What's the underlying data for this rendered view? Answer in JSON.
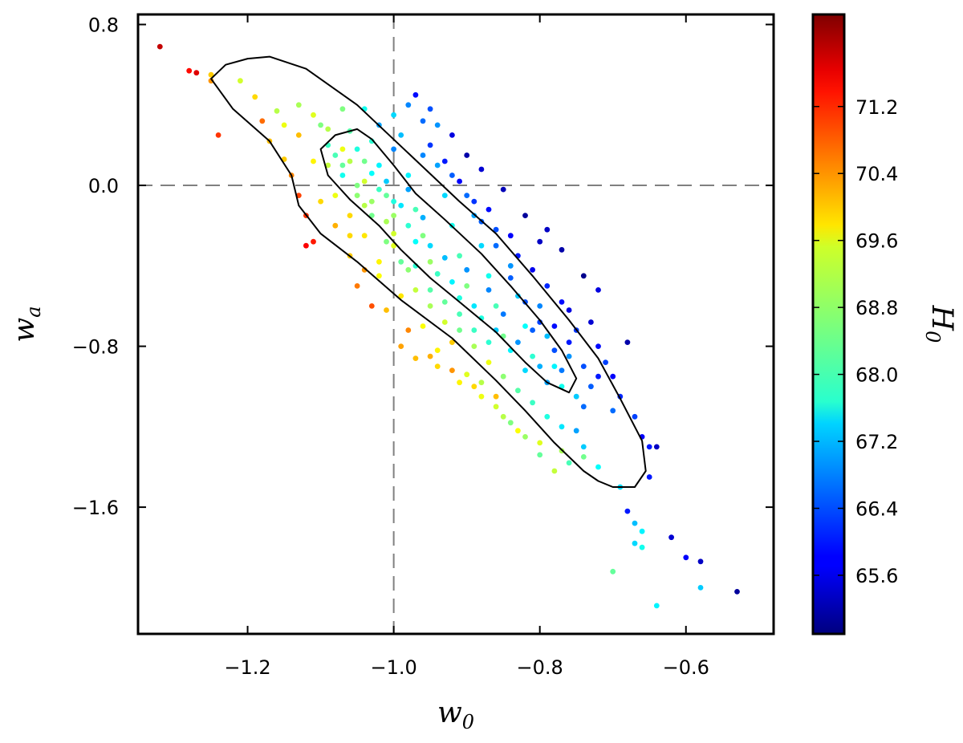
{
  "chart_data": {
    "type": "scatter",
    "xlabel": "w",
    "xlabel_sub": "0",
    "ylabel": "w",
    "ylabel_sub": "a",
    "xlim": [
      -1.35,
      -0.48
    ],
    "ylim": [
      -2.23,
      0.85
    ],
    "x_ticks": [
      -1.2,
      -1.0,
      -0.8,
      -0.6
    ],
    "x_tick_labels": [
      "−1.2",
      "−1.0",
      "−0.8",
      "−0.6"
    ],
    "y_ticks": [
      0.8,
      0.0,
      -0.8,
      -1.6
    ],
    "y_tick_labels": [
      "0.8",
      "0.0",
      "−0.8",
      "−1.6"
    ],
    "reference_lines": {
      "x": -1.0,
      "y": 0.0,
      "style": "dashed",
      "color": "#808080"
    },
    "grid": false,
    "colorbar": {
      "label": "H",
      "label_sub": "0",
      "colormap": "jet",
      "range": [
        64.9,
        72.3
      ],
      "ticks": [
        71.2,
        70.4,
        69.6,
        68.8,
        68.0,
        67.2,
        66.4,
        65.6
      ],
      "tick_labels": [
        "71.2",
        "70.4",
        "69.6",
        "68.8",
        "68.0",
        "67.2",
        "66.4",
        "65.6"
      ]
    },
    "contours": [
      {
        "level": "inner",
        "points": [
          [
            -1.05,
            0.28
          ],
          [
            -1.08,
            0.25
          ],
          [
            -1.1,
            0.18
          ],
          [
            -1.09,
            0.05
          ],
          [
            -1.06,
            -0.07
          ],
          [
            -1.02,
            -0.2
          ],
          [
            -0.99,
            -0.32
          ],
          [
            -0.95,
            -0.46
          ],
          [
            -0.91,
            -0.58
          ],
          [
            -0.86,
            -0.73
          ],
          [
            -0.82,
            -0.88
          ],
          [
            -0.79,
            -0.98
          ],
          [
            -0.76,
            -1.03
          ],
          [
            -0.75,
            -0.96
          ],
          [
            -0.77,
            -0.82
          ],
          [
            -0.8,
            -0.67
          ],
          [
            -0.84,
            -0.5
          ],
          [
            -0.88,
            -0.34
          ],
          [
            -0.93,
            -0.17
          ],
          [
            -0.97,
            -0.04
          ],
          [
            -1.0,
            0.1
          ],
          [
            -1.03,
            0.23
          ],
          [
            -1.05,
            0.28
          ]
        ]
      },
      {
        "level": "outer",
        "points": [
          [
            -1.2,
            0.63
          ],
          [
            -1.23,
            0.6
          ],
          [
            -1.25,
            0.53
          ],
          [
            -1.22,
            0.38
          ],
          [
            -1.17,
            0.22
          ],
          [
            -1.14,
            0.05
          ],
          [
            -1.13,
            -0.1
          ],
          [
            -1.1,
            -0.24
          ],
          [
            -1.05,
            -0.38
          ],
          [
            -0.99,
            -0.57
          ],
          [
            -0.92,
            -0.76
          ],
          [
            -0.86,
            -0.97
          ],
          [
            -0.82,
            -1.12
          ],
          [
            -0.78,
            -1.28
          ],
          [
            -0.74,
            -1.42
          ],
          [
            -0.72,
            -1.47
          ],
          [
            -0.7,
            -1.5
          ],
          [
            -0.67,
            -1.5
          ],
          [
            -0.655,
            -1.42
          ],
          [
            -0.66,
            -1.27
          ],
          [
            -0.69,
            -1.06
          ],
          [
            -0.72,
            -0.86
          ],
          [
            -0.76,
            -0.67
          ],
          [
            -0.81,
            -0.45
          ],
          [
            -0.86,
            -0.24
          ],
          [
            -0.91,
            -0.08
          ],
          [
            -0.98,
            0.16
          ],
          [
            -1.05,
            0.4
          ],
          [
            -1.12,
            0.58
          ],
          [
            -1.17,
            0.64
          ],
          [
            -1.2,
            0.63
          ]
        ]
      }
    ],
    "points": [
      [
        -1.32,
        0.69,
        71.8
      ],
      [
        -1.28,
        0.57,
        71.3
      ],
      [
        -1.27,
        0.56,
        71.6
      ],
      [
        -1.25,
        0.52,
        70.3
      ],
      [
        -1.25,
        0.55,
        69.9
      ],
      [
        -1.24,
        0.25,
        71.0
      ],
      [
        -1.21,
        0.52,
        69.2
      ],
      [
        -1.19,
        0.44,
        69.8
      ],
      [
        -1.18,
        0.32,
        70.6
      ],
      [
        -1.17,
        0.22,
        70.0
      ],
      [
        -1.16,
        0.37,
        69.0
      ],
      [
        -1.15,
        0.3,
        69.4
      ],
      [
        -1.15,
        0.13,
        69.9
      ],
      [
        -1.14,
        0.05,
        70.4
      ],
      [
        -1.13,
        -0.05,
        70.9
      ],
      [
        -1.12,
        -0.15,
        71.0
      ],
      [
        -1.11,
        -0.28,
        71.2
      ],
      [
        -1.12,
        -0.3,
        71.4
      ],
      [
        -1.06,
        -0.25,
        69.8
      ],
      [
        -1.05,
        -0.5,
        70.5
      ],
      [
        -1.03,
        -0.6,
        70.8
      ],
      [
        -1.02,
        -0.38,
        69.6
      ],
      [
        -1.0,
        -0.24,
        69.2
      ],
      [
        -0.99,
        -0.8,
        70.2
      ],
      [
        -0.97,
        -0.86,
        70.0
      ],
      [
        -0.94,
        -0.82,
        69.6
      ],
      [
        -0.92,
        -0.78,
        69.9
      ],
      [
        -0.9,
        -0.94,
        69.3
      ],
      [
        -0.88,
        -0.98,
        69.0
      ],
      [
        -0.86,
        -1.1,
        69.2
      ],
      [
        -0.84,
        -1.18,
        68.6
      ],
      [
        -0.82,
        -1.25,
        68.8
      ],
      [
        -0.8,
        -1.34,
        68.4
      ],
      [
        -0.78,
        -1.42,
        69.1
      ],
      [
        -0.76,
        -1.38,
        68.2
      ],
      [
        -1.1,
        0.3,
        68.6
      ],
      [
        -1.08,
        0.15,
        68.2
      ],
      [
        -1.07,
        0.05,
        67.8
      ],
      [
        -1.05,
        0.0,
        68.6
      ],
      [
        -1.04,
        -0.1,
        69.0
      ],
      [
        -1.03,
        0.22,
        68.0
      ],
      [
        -1.02,
        0.1,
        67.6
      ],
      [
        -1.01,
        -0.05,
        68.4
      ],
      [
        -1.0,
        -0.15,
        68.8
      ],
      [
        -0.99,
        0.25,
        67.2
      ],
      [
        -0.98,
        0.05,
        67.6
      ],
      [
        -0.97,
        -0.12,
        68.2
      ],
      [
        -0.96,
        -0.25,
        68.6
      ],
      [
        -0.95,
        -0.38,
        68.8
      ],
      [
        -0.94,
        0.1,
        67.0
      ],
      [
        -0.93,
        -0.05,
        67.4
      ],
      [
        -0.92,
        -0.2,
        67.8
      ],
      [
        -0.91,
        -0.35,
        68.2
      ],
      [
        -0.9,
        -0.5,
        68.6
      ],
      [
        -0.89,
        -0.15,
        67.0
      ],
      [
        -0.88,
        -0.3,
        67.4
      ],
      [
        -0.87,
        -0.45,
        67.8
      ],
      [
        -0.86,
        -0.6,
        68.2
      ],
      [
        -0.85,
        -0.75,
        68.5
      ],
      [
        -0.84,
        -0.4,
        66.9
      ],
      [
        -0.83,
        -0.55,
        67.3
      ],
      [
        -0.82,
        -0.7,
        67.7
      ],
      [
        -0.81,
        -0.85,
        68.0
      ],
      [
        -0.8,
        -0.6,
        66.8
      ],
      [
        -0.79,
        -0.75,
        67.2
      ],
      [
        -0.78,
        -0.9,
        67.6
      ],
      [
        -0.77,
        -1.0,
        67.8
      ],
      [
        -0.76,
        -0.85,
        66.9
      ],
      [
        -0.75,
        -1.05,
        67.3
      ],
      [
        -0.74,
        -1.1,
        66.6
      ],
      [
        -0.73,
        -1.0,
        66.5
      ],
      [
        -0.96,
        0.32,
        66.6
      ],
      [
        -0.95,
        0.2,
        66.2
      ],
      [
        -0.93,
        0.12,
        66.0
      ],
      [
        -0.91,
        0.02,
        65.8
      ],
      [
        -0.89,
        -0.08,
        66.2
      ],
      [
        -0.87,
        -0.12,
        65.9
      ],
      [
        -0.86,
        -0.22,
        66.4
      ],
      [
        -0.84,
        -0.25,
        65.8
      ],
      [
        -0.83,
        -0.35,
        66.0
      ],
      [
        -0.81,
        -0.42,
        65.7
      ],
      [
        -0.8,
        -0.28,
        65.4
      ],
      [
        -0.79,
        -0.5,
        66.1
      ],
      [
        -0.77,
        -0.58,
        65.9
      ],
      [
        -0.76,
        -0.62,
        65.6
      ],
      [
        -0.75,
        -0.72,
        66.2
      ],
      [
        -0.73,
        -0.68,
        65.5
      ],
      [
        -0.72,
        -0.8,
        65.9
      ],
      [
        -0.71,
        -0.88,
        66.3
      ],
      [
        -0.7,
        -0.95,
        65.8
      ],
      [
        -0.69,
        -1.05,
        66.1
      ],
      [
        -0.68,
        -0.78,
        65.2
      ],
      [
        -0.67,
        -1.15,
        66.3
      ],
      [
        -0.66,
        -1.25,
        65.8
      ],
      [
        -0.65,
        -1.3,
        66.0
      ],
      [
        -0.64,
        -1.3,
        65.4
      ],
      [
        -0.65,
        -1.45,
        66.0
      ],
      [
        -1.13,
        0.4,
        68.9
      ],
      [
        -1.11,
        0.35,
        69.3
      ],
      [
        -1.09,
        0.28,
        69.0
      ],
      [
        -1.07,
        0.18,
        69.4
      ],
      [
        -1.06,
        0.12,
        69.0
      ],
      [
        -1.04,
        0.02,
        69.2
      ],
      [
        -1.03,
        -0.08,
        68.8
      ],
      [
        -1.01,
        -0.18,
        68.9
      ],
      [
        -1.0,
        -0.3,
        69.3
      ],
      [
        -0.98,
        -0.42,
        68.7
      ],
      [
        -0.97,
        -0.52,
        69.1
      ],
      [
        -0.95,
        -0.6,
        68.9
      ],
      [
        -0.93,
        -0.68,
        69.2
      ],
      [
        -0.91,
        -0.72,
        68.5
      ],
      [
        -0.89,
        -0.8,
        68.9
      ],
      [
        -0.87,
        -0.88,
        69.4
      ],
      [
        -0.85,
        -0.95,
        68.7
      ],
      [
        -0.83,
        -1.02,
        68.3
      ],
      [
        -0.81,
        -1.08,
        68.1
      ],
      [
        -0.79,
        -1.15,
        67.9
      ],
      [
        -0.77,
        -1.2,
        67.5
      ],
      [
        -0.75,
        -1.22,
        67.0
      ],
      [
        -0.74,
        -1.3,
        67.3
      ],
      [
        -0.72,
        -1.4,
        67.7
      ],
      [
        -1.08,
        -0.05,
        69.4
      ],
      [
        -1.06,
        -0.15,
        69.8
      ],
      [
        -1.04,
        -0.25,
        69.7
      ],
      [
        -1.02,
        -0.45,
        69.5
      ],
      [
        -0.99,
        -0.55,
        69.7
      ],
      [
        -0.96,
        -0.7,
        69.5
      ],
      [
        -0.94,
        -0.9,
        69.8
      ],
      [
        -0.91,
        -0.98,
        69.6
      ],
      [
        -0.88,
        -1.05,
        69.4
      ],
      [
        -0.85,
        -1.15,
        69.0
      ],
      [
        -0.98,
        0.4,
        66.8
      ],
      [
        -1.0,
        0.35,
        67.4
      ],
      [
        -0.97,
        0.45,
        65.9
      ],
      [
        -0.95,
        0.38,
        66.4
      ],
      [
        -0.92,
        0.25,
        65.6
      ],
      [
        -0.9,
        0.15,
        65.2
      ],
      [
        -0.88,
        0.08,
        65.5
      ],
      [
        -0.85,
        -0.02,
        65.3
      ],
      [
        -0.82,
        -0.15,
        65.1
      ],
      [
        -0.79,
        -0.22,
        65.4
      ],
      [
        -0.77,
        -0.32,
        65.2
      ],
      [
        -0.74,
        -0.45,
        65.0
      ],
      [
        -0.72,
        -0.52,
        65.6
      ],
      [
        -0.69,
        -1.5,
        67.4
      ],
      [
        -0.68,
        -1.62,
        66.0
      ],
      [
        -0.67,
        -1.68,
        67.2
      ],
      [
        -0.66,
        -1.72,
        67.6
      ],
      [
        -0.67,
        -1.78,
        67.4
      ],
      [
        -0.66,
        -1.8,
        67.8
      ],
      [
        -0.62,
        -1.75,
        65.5
      ],
      [
        -0.6,
        -1.85,
        65.8
      ],
      [
        -0.58,
        -1.87,
        65.4
      ],
      [
        -0.58,
        -2.0,
        67.3
      ],
      [
        -0.7,
        -1.92,
        68.4
      ],
      [
        -0.64,
        -2.09,
        67.6
      ],
      [
        -0.53,
        -2.02,
        65.1
      ],
      [
        -1.06,
        0.27,
        68.3
      ],
      [
        -1.05,
        0.18,
        67.9
      ],
      [
        -1.04,
        0.12,
        68.5
      ],
      [
        -1.03,
        0.06,
        67.7
      ],
      [
        -1.02,
        -0.02,
        68.1
      ],
      [
        -1.01,
        0.02,
        67.3
      ],
      [
        -1.0,
        -0.08,
        67.9
      ],
      [
        -0.99,
        -0.1,
        67.5
      ],
      [
        -0.98,
        -0.2,
        68.0
      ],
      [
        -0.97,
        -0.28,
        67.7
      ],
      [
        -0.96,
        -0.16,
        67.1
      ],
      [
        -0.95,
        -0.3,
        67.4
      ],
      [
        -0.94,
        -0.44,
        68.1
      ],
      [
        -0.93,
        -0.36,
        67.2
      ],
      [
        -0.92,
        -0.48,
        67.6
      ],
      [
        -0.91,
        -0.56,
        67.9
      ],
      [
        -0.9,
        -0.42,
        66.9
      ],
      [
        -0.89,
        -0.6,
        67.5
      ],
      [
        -0.88,
        -0.66,
        67.9
      ],
      [
        -0.87,
        -0.52,
        66.8
      ],
      [
        -0.86,
        -0.72,
        67.3
      ],
      [
        -0.85,
        -0.64,
        66.7
      ],
      [
        -0.84,
        -0.82,
        67.6
      ],
      [
        -0.83,
        -0.78,
        66.9
      ],
      [
        -0.82,
        -0.92,
        67.4
      ],
      [
        -0.81,
        -0.72,
        66.5
      ],
      [
        -0.8,
        -0.9,
        67.1
      ],
      [
        -0.79,
        -0.98,
        67.0
      ],
      [
        -0.78,
        -0.82,
        66.4
      ],
      [
        -0.77,
        -0.92,
        66.7
      ],
      [
        -1.09,
        0.2,
        68.1
      ],
      [
        -1.07,
        0.1,
        68.4
      ],
      [
        -1.05,
        -0.05,
        68.7
      ],
      [
        -1.03,
        -0.15,
        68.5
      ],
      [
        -1.01,
        -0.28,
        68.6
      ],
      [
        -0.99,
        -0.38,
        68.4
      ],
      [
        -0.97,
        -0.4,
        68.0
      ],
      [
        -0.95,
        -0.52,
        68.3
      ],
      [
        -0.93,
        -0.58,
        68.4
      ],
      [
        -0.91,
        -0.64,
        68.2
      ],
      [
        -0.89,
        -0.72,
        68.1
      ],
      [
        -0.87,
        -0.78,
        68.0
      ],
      [
        -0.92,
        0.05,
        66.5
      ],
      [
        -0.9,
        -0.05,
        66.6
      ],
      [
        -0.88,
        -0.18,
        66.5
      ],
      [
        -0.86,
        -0.3,
        66.6
      ],
      [
        -0.84,
        -0.46,
        66.5
      ],
      [
        -0.82,
        -0.58,
        66.4
      ],
      [
        -0.8,
        -0.68,
        66.3
      ],
      [
        -0.78,
        -0.7,
        65.9
      ],
      [
        -0.76,
        -0.78,
        66.0
      ],
      [
        -0.74,
        -0.9,
        66.4
      ],
      [
        -0.72,
        -0.95,
        66.0
      ],
      [
        -0.7,
        -1.12,
        66.6
      ],
      [
        -0.94,
        0.3,
        66.9
      ],
      [
        -0.96,
        0.15,
        66.8
      ],
      [
        -0.98,
        -0.02,
        67.0
      ],
      [
        -1.0,
        0.18,
        66.8
      ],
      [
        -1.02,
        0.3,
        67.0
      ],
      [
        -1.04,
        0.38,
        67.8
      ],
      [
        -1.07,
        0.38,
        68.6
      ],
      [
        -1.09,
        0.1,
        69.1
      ],
      [
        -1.11,
        0.12,
        69.6
      ],
      [
        -1.13,
        0.25,
        70.0
      ],
      [
        -1.1,
        -0.08,
        69.8
      ],
      [
        -1.08,
        -0.2,
        70.1
      ],
      [
        -1.06,
        -0.35,
        69.9
      ],
      [
        -1.04,
        -0.42,
        70.3
      ],
      [
        -1.01,
        -0.62,
        70.0
      ],
      [
        -0.98,
        -0.72,
        70.4
      ],
      [
        -0.95,
        -0.85,
        70.1
      ],
      [
        -0.92,
        -0.92,
        70.3
      ],
      [
        -0.89,
        -1.0,
        69.8
      ],
      [
        -0.86,
        -1.05,
        70.0
      ],
      [
        -0.83,
        -1.22,
        69.5
      ],
      [
        -0.8,
        -1.28,
        69.3
      ],
      [
        -0.77,
        -1.32,
        68.9
      ],
      [
        -0.74,
        -1.35,
        68.5
      ]
    ]
  }
}
